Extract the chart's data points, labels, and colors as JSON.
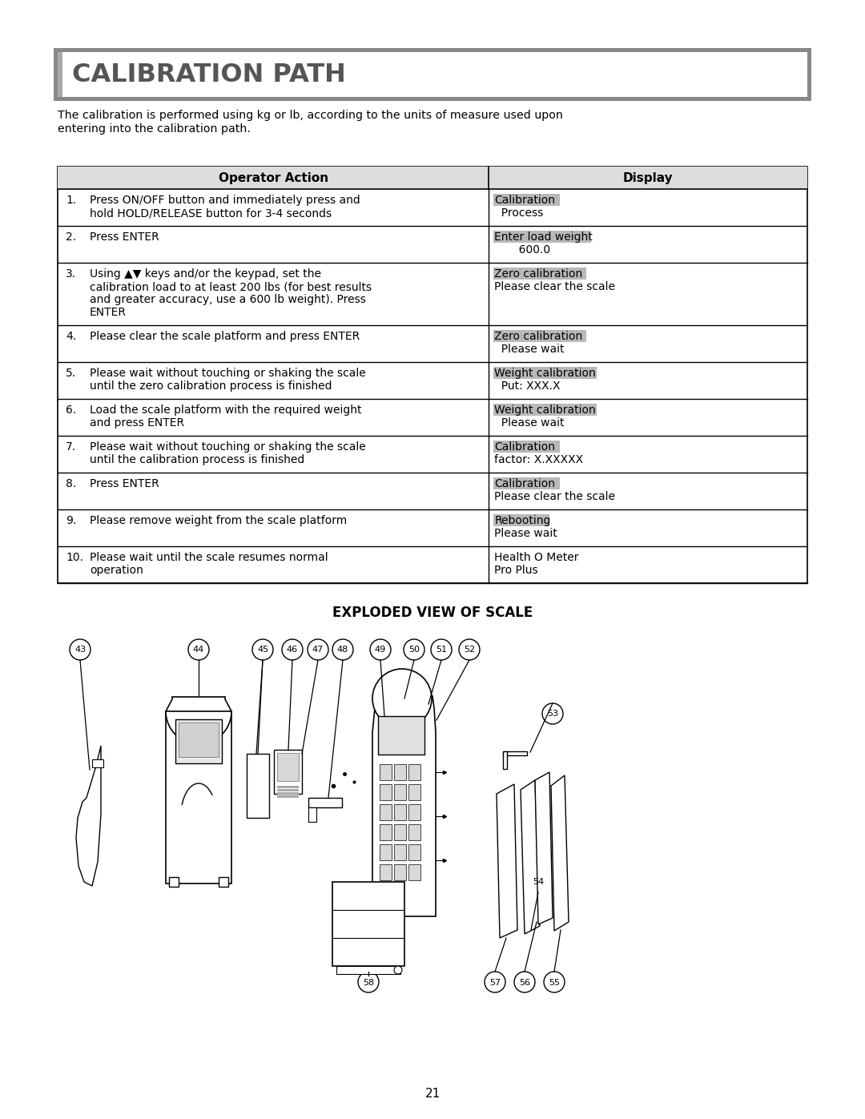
{
  "title": "CALIBRATION PATH",
  "subtitle_line1": "The calibration is performed using kg or lb, according to the units of measure used upon",
  "subtitle_line2": "entering into the calibration path.",
  "col1_header": "Operator Action",
  "col2_header": "Display",
  "rows": [
    {
      "num": "1.",
      "action": [
        "Press ON/OFF button and immediately press and",
        "hold HOLD/RELEASE button for 3-4 seconds"
      ],
      "display_line1": "Calibration",
      "display_line2": "  Process",
      "hl1": true
    },
    {
      "num": "2.",
      "action": [
        "Press ENTER"
      ],
      "display_line1": "Enter load weight",
      "display_line2": "       600.0",
      "hl1": true
    },
    {
      "num": "3.",
      "action": [
        "Using ▲▼ keys and/or the keypad, set the",
        "calibration load to at least 200 lbs (for best results",
        "and greater accuracy, use a 600 lb weight). Press",
        "ENTER"
      ],
      "display_line1": "Zero calibration",
      "display_line2": "Please clear the scale",
      "hl1": true
    },
    {
      "num": "4.",
      "action": [
        "Please clear the scale platform and press ENTER"
      ],
      "display_line1": "Zero calibration",
      "display_line2": "  Please wait",
      "hl1": true
    },
    {
      "num": "5.",
      "action": [
        "Please wait without touching or shaking the scale",
        "until the zero calibration process is finished"
      ],
      "display_line1": "Weight calibration",
      "display_line2": "  Put: XXX.X",
      "hl1": true
    },
    {
      "num": "6.",
      "action": [
        "Load the scale platform with the required weight",
        "and press ENTER"
      ],
      "display_line1": "Weight calibration",
      "display_line2": "  Please wait",
      "hl1": true
    },
    {
      "num": "7.",
      "action": [
        "Please wait without touching or shaking the scale",
        "until the calibration process is finished"
      ],
      "display_line1": "Calibration",
      "display_line2": "factor: X.XXXXX",
      "hl1": true
    },
    {
      "num": "8.",
      "action": [
        "Press ENTER"
      ],
      "display_line1": "Calibration",
      "display_line2": "Please clear the scale",
      "hl1": true
    },
    {
      "num": "9.",
      "action": [
        "Please remove weight from the scale platform"
      ],
      "display_line1": "Rebooting",
      "display_line2": "Please wait",
      "hl1": true
    },
    {
      "num": "10.",
      "action": [
        "Please wait until the scale resumes normal",
        "operation"
      ],
      "display_line1": "Health O Meter",
      "display_line2": "Pro Plus",
      "hl1": false
    }
  ],
  "exploded_title": "EXPLODED VIEW OF SCALE",
  "page_number": "21",
  "highlight_color": "#b8b8b8",
  "bg_color": "#ffffff",
  "title_bg": "#ffffff",
  "title_border": "#888888",
  "title_color": "#555555"
}
